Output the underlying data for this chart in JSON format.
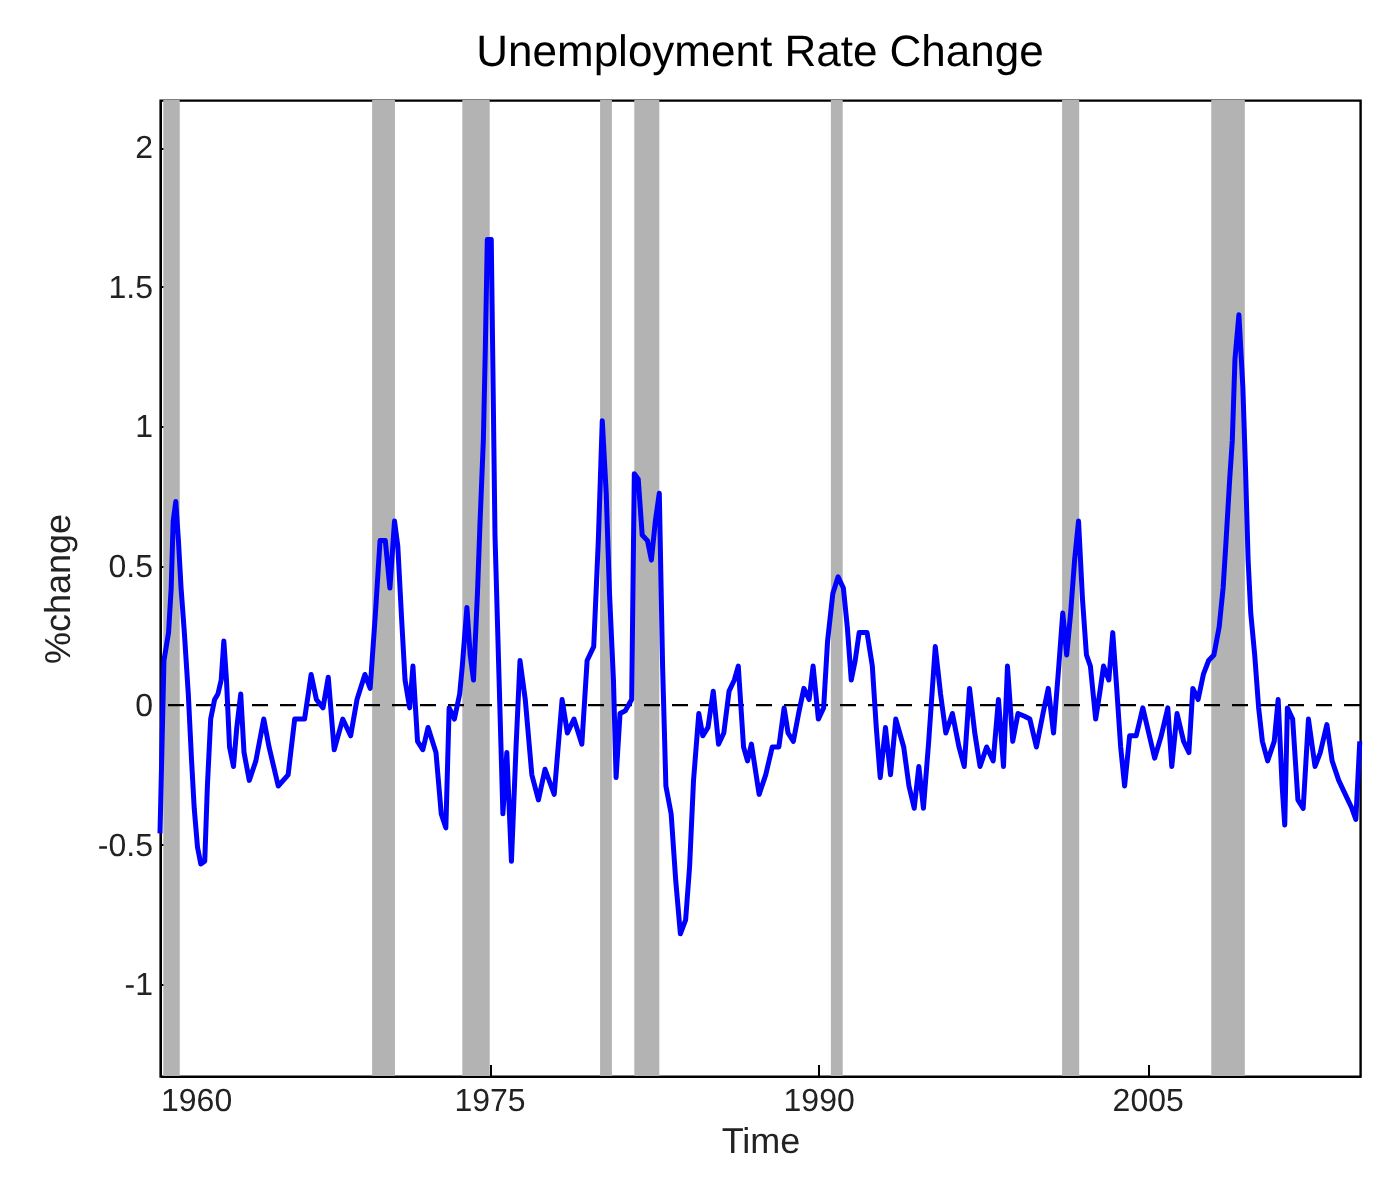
{
  "chart_data": {
    "type": "line",
    "title": "Unemployment Rate Change",
    "xlabel": "Time",
    "ylabel": "%change",
    "xlim": [
      1960,
      2014.7
    ],
    "ylim": [
      -1.33,
      2.17
    ],
    "xticks": [
      1960,
      1975,
      1990,
      2005
    ],
    "yticks": [
      -1,
      -0.5,
      0,
      0.5,
      1,
      1.5,
      2
    ],
    "grid": false,
    "ref_lines": [
      {
        "axis": "y",
        "value": 0,
        "color": "#000000",
        "line_style": "dashed"
      }
    ],
    "bands": [
      {
        "axis": "x",
        "from": 1960.15,
        "to": 1960.9,
        "color": "#b3b3b3"
      },
      {
        "axis": "x",
        "from": 1969.67,
        "to": 1970.71,
        "color": "#b3b3b3"
      },
      {
        "axis": "x",
        "from": 1973.78,
        "to": 1975.03,
        "color": "#b3b3b3"
      },
      {
        "axis": "x",
        "from": 1980.06,
        "to": 1980.6,
        "color": "#b3b3b3"
      },
      {
        "axis": "x",
        "from": 1981.62,
        "to": 1982.76,
        "color": "#b3b3b3"
      },
      {
        "axis": "x",
        "from": 1990.58,
        "to": 1991.12,
        "color": "#b3b3b3"
      },
      {
        "axis": "x",
        "from": 2001.12,
        "to": 2001.9,
        "color": "#b3b3b3"
      },
      {
        "axis": "x",
        "from": 2007.92,
        "to": 2009.45,
        "color": "#b3b3b3"
      }
    ],
    "series": [
      {
        "color": "#0000ff",
        "line_style": "solid",
        "marker": "none",
        "x": [
          1960.0,
          1960.18,
          1960.39,
          1960.51,
          1960.6,
          1960.72,
          1960.84,
          1960.96,
          1961.11,
          1961.29,
          1961.44,
          1961.56,
          1961.71,
          1961.86,
          1962.04,
          1962.16,
          1962.31,
          1962.49,
          1962.64,
          1962.79,
          1962.91,
          1963.03,
          1963.17,
          1963.35,
          1963.5,
          1963.68,
          1963.83,
          1964.07,
          1964.37,
          1964.73,
          1964.97,
          1965.39,
          1965.84,
          1966.14,
          1966.59,
          1966.89,
          1967.13,
          1967.43,
          1967.67,
          1967.94,
          1968.33,
          1968.69,
          1968.98,
          1969.34,
          1969.58,
          1969.82,
          1970.03,
          1970.27,
          1970.48,
          1970.69,
          1970.84,
          1971.02,
          1971.17,
          1971.38,
          1971.53,
          1971.74,
          1971.98,
          1972.22,
          1972.58,
          1972.82,
          1973.03,
          1973.18,
          1973.42,
          1973.66,
          1973.78,
          1973.99,
          1974.14,
          1974.29,
          1974.47,
          1974.59,
          1974.74,
          1974.83,
          1974.92,
          1975.1,
          1975.27,
          1975.45,
          1975.63,
          1975.81,
          1976.02,
          1976.23,
          1976.41,
          1976.65,
          1976.95,
          1977.25,
          1977.55,
          1977.97,
          1978.33,
          1978.57,
          1978.87,
          1979.23,
          1979.47,
          1979.77,
          1979.98,
          1980.16,
          1980.34,
          1980.49,
          1980.67,
          1980.79,
          1980.97,
          1981.21,
          1981.5,
          1981.62,
          1981.8,
          1981.98,
          1982.22,
          1982.4,
          1982.58,
          1982.76,
          1982.91,
          1983.06,
          1983.3,
          1983.51,
          1983.72,
          1983.96,
          1984.14,
          1984.32,
          1984.56,
          1984.74,
          1984.98,
          1985.22,
          1985.46,
          1985.7,
          1985.94,
          1986.18,
          1986.36,
          1986.6,
          1986.78,
          1986.96,
          1987.31,
          1987.61,
          1987.91,
          1988.21,
          1988.45,
          1988.63,
          1988.87,
          1989.11,
          1989.35,
          1989.59,
          1989.77,
          1990.01,
          1990.25,
          1990.43,
          1990.67,
          1990.91,
          1991.15,
          1991.33,
          1991.51,
          1991.69,
          1991.87,
          1992.23,
          1992.47,
          1992.65,
          1992.83,
          1993.07,
          1993.3,
          1993.54,
          1993.9,
          1994.14,
          1994.38,
          1994.59,
          1994.8,
          1995.04,
          1995.34,
          1995.58,
          1995.82,
          1996.12,
          1996.42,
          1996.66,
          1996.9,
          1997.14,
          1997.38,
          1997.68,
          1997.98,
          1998.22,
          1998.45,
          1998.63,
          1998.87,
          1999.11,
          1999.41,
          1999.65,
          1999.95,
          2000.25,
          2000.49,
          2000.73,
          2000.97,
          2001.15,
          2001.33,
          2001.51,
          2001.69,
          2001.87,
          2002.05,
          2002.23,
          2002.41,
          2002.65,
          2002.83,
          2003.01,
          2003.25,
          2003.43,
          2003.61,
          2003.79,
          2003.97,
          2004.2,
          2004.5,
          2004.8,
          2005.04,
          2005.34,
          2005.64,
          2005.94,
          2006.12,
          2006.36,
          2006.66,
          2006.9,
          2007.08,
          2007.32,
          2007.56,
          2007.8,
          2008.04,
          2008.28,
          2008.46,
          2008.58,
          2008.76,
          2008.88,
          2009.0,
          2009.18,
          2009.36,
          2009.48,
          2009.6,
          2009.72,
          2009.9,
          2010.08,
          2010.25,
          2010.49,
          2010.79,
          2010.97,
          2011.15,
          2011.27,
          2011.39,
          2011.63,
          2011.87,
          2012.11,
          2012.35,
          2012.65,
          2012.89,
          2013.19,
          2013.43,
          2013.73,
          2014.03,
          2014.33,
          2014.51,
          2014.69
        ],
        "values": [
          -0.46,
          0.16,
          0.26,
          0.42,
          0.66,
          0.73,
          0.59,
          0.42,
          0.26,
          0.04,
          -0.2,
          -0.37,
          -0.51,
          -0.57,
          -0.56,
          -0.29,
          -0.05,
          0.02,
          0.04,
          0.09,
          0.23,
          0.09,
          -0.15,
          -0.22,
          -0.08,
          0.04,
          -0.17,
          -0.27,
          -0.2,
          -0.05,
          -0.15,
          -0.29,
          -0.25,
          -0.05,
          -0.05,
          0.11,
          0.02,
          -0.01,
          0.1,
          -0.16,
          -0.05,
          -0.11,
          0.02,
          0.11,
          0.06,
          0.33,
          0.59,
          0.59,
          0.42,
          0.66,
          0.57,
          0.3,
          0.09,
          -0.01,
          0.14,
          -0.13,
          -0.16,
          -0.08,
          -0.17,
          -0.39,
          -0.44,
          -0.01,
          -0.05,
          0.04,
          0.14,
          0.35,
          0.18,
          0.09,
          0.4,
          0.66,
          0.95,
          1.28,
          1.67,
          1.67,
          0.61,
          0.11,
          -0.39,
          -0.17,
          -0.56,
          -0.15,
          0.16,
          0.02,
          -0.25,
          -0.34,
          -0.23,
          -0.32,
          0.02,
          -0.1,
          -0.05,
          -0.14,
          0.16,
          0.21,
          0.59,
          1.02,
          0.76,
          0.4,
          0.09,
          -0.26,
          -0.03,
          -0.02,
          0.02,
          0.83,
          0.81,
          0.61,
          0.59,
          0.52,
          0.66,
          0.76,
          0.14,
          -0.29,
          -0.39,
          -0.63,
          -0.82,
          -0.77,
          -0.58,
          -0.27,
          -0.03,
          -0.11,
          -0.08,
          0.05,
          -0.14,
          -0.1,
          0.05,
          0.09,
          0.14,
          -0.15,
          -0.2,
          -0.14,
          -0.32,
          -0.25,
          -0.15,
          -0.15,
          -0.01,
          -0.1,
          -0.13,
          -0.03,
          0.06,
          0.02,
          0.14,
          -0.05,
          -0.01,
          0.23,
          0.4,
          0.46,
          0.42,
          0.28,
          0.09,
          0.16,
          0.26,
          0.26,
          0.14,
          -0.08,
          -0.26,
          -0.08,
          -0.25,
          -0.05,
          -0.15,
          -0.29,
          -0.37,
          -0.22,
          -0.37,
          -0.13,
          0.21,
          0.04,
          -0.1,
          -0.03,
          -0.15,
          -0.22,
          0.06,
          -0.1,
          -0.22,
          -0.15,
          -0.2,
          0.02,
          -0.22,
          0.14,
          -0.13,
          -0.03,
          -0.04,
          -0.05,
          -0.15,
          -0.03,
          0.06,
          -0.1,
          0.14,
          0.33,
          0.18,
          0.33,
          0.52,
          0.66,
          0.38,
          0.18,
          0.14,
          -0.05,
          0.04,
          0.14,
          0.09,
          0.26,
          0.06,
          -0.15,
          -0.29,
          -0.11,
          -0.11,
          -0.01,
          -0.09,
          -0.19,
          -0.11,
          -0.01,
          -0.22,
          -0.03,
          -0.13,
          -0.17,
          0.06,
          0.02,
          0.11,
          0.16,
          0.18,
          0.28,
          0.42,
          0.57,
          0.81,
          0.95,
          1.24,
          1.4,
          1.14,
          0.85,
          0.52,
          0.33,
          0.18,
          -0.01,
          -0.13,
          -0.2,
          -0.13,
          0.02,
          -0.29,
          -0.43,
          -0.01,
          -0.05,
          -0.34,
          -0.37,
          -0.05,
          -0.22,
          -0.17,
          -0.07,
          -0.2,
          -0.27,
          -0.32,
          -0.37,
          -0.41,
          -0.13
        ]
      }
    ]
  }
}
